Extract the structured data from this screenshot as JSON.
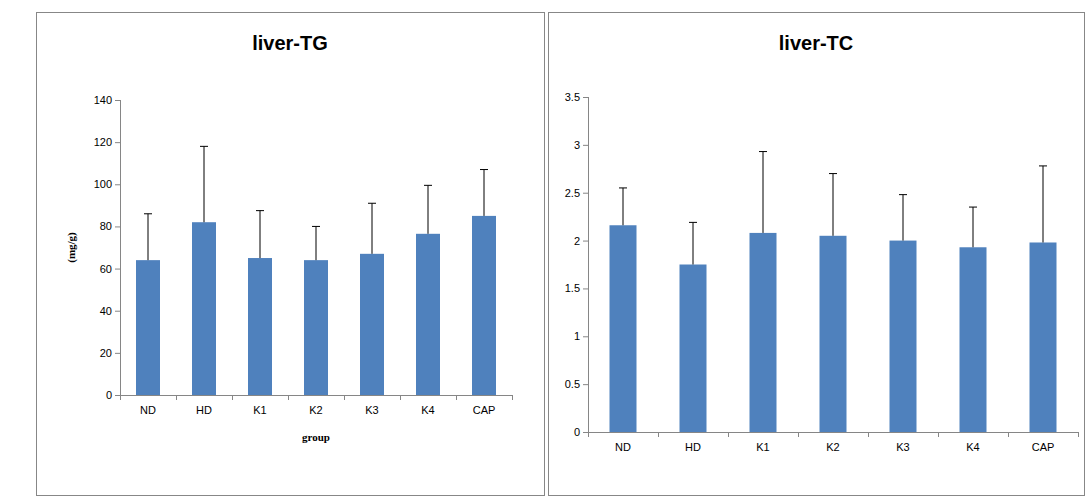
{
  "chart_data": [
    {
      "type": "bar",
      "title": "liver-TG",
      "x_label": "group",
      "y_label": "(mg/g)",
      "categories": [
        "ND",
        "HD",
        "K1",
        "K2",
        "K3",
        "K4",
        "CAP"
      ],
      "values": [
        64,
        82,
        65,
        64,
        67,
        76.5,
        85
      ],
      "errors": [
        22,
        36,
        22.5,
        16,
        24,
        23,
        22
      ],
      "color": "#4f81bd",
      "ylim": [
        0,
        140
      ],
      "yticks": [
        0,
        20,
        40,
        60,
        80,
        100,
        120,
        140
      ],
      "grid": false
    },
    {
      "type": "bar",
      "title": "liver-TC",
      "categories": [
        "ND",
        "HD",
        "K1",
        "K2",
        "K3",
        "K4",
        "CAP"
      ],
      "values": [
        2.16,
        1.75,
        2.08,
        2.05,
        2.0,
        1.93,
        1.98
      ],
      "errors": [
        0.39,
        0.44,
        0.85,
        0.65,
        0.48,
        0.42,
        0.8
      ],
      "color": "#4f81bd",
      "ylim": [
        0,
        3.5
      ],
      "yticks": [
        0,
        0.5,
        1,
        1.5,
        2,
        2.5,
        3,
        3.5
      ],
      "grid": false
    }
  ]
}
